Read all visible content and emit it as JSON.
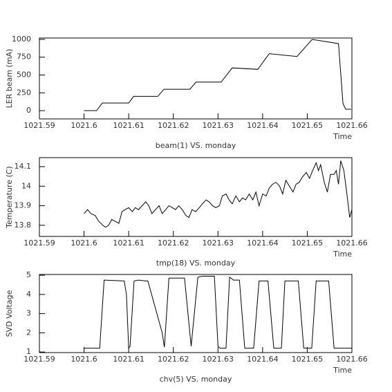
{
  "chart_data": [
    {
      "type": "line",
      "title": "beam(1) VS. monday",
      "xlabel": "Time",
      "ylabel": "LER beam (mA)",
      "color": "#000000",
      "x": [
        1021.6,
        1021.6028,
        1021.6041,
        1021.61,
        1021.6111,
        1021.6165,
        1021.6179,
        1021.6237,
        1021.6251,
        1021.6307,
        1021.6332,
        1021.6389,
        1021.6415,
        1021.6477,
        1021.6511,
        1021.657,
        1021.658,
        1021.6586,
        1021.6598
      ],
      "values": [
        0,
        0,
        107,
        107,
        200,
        200,
        300,
        300,
        400,
        400,
        600,
        580,
        800,
        760,
        1000,
        940,
        100,
        20,
        20
      ],
      "xlim": [
        1021.59,
        1021.66
      ],
      "xticks": [
        1021.59,
        1021.6,
        1021.61,
        1021.62,
        1021.63,
        1021.64,
        1021.65,
        1021.66
      ],
      "ylim": [
        -116,
        1019
      ],
      "yticks": [
        0,
        250,
        500,
        750,
        1000
      ]
    },
    {
      "type": "line",
      "title": "tmp(18) VS. monday",
      "xlabel": "Time",
      "ylabel": "Temperature (C)",
      "color": "#000000",
      "x": [
        1021.6,
        1021.6008,
        1021.6015,
        1021.6025,
        1021.6033,
        1021.6042,
        1021.6048,
        1021.6055,
        1021.6062,
        1021.607,
        1021.6078,
        1021.6085,
        1021.6092,
        1021.61,
        1021.6108,
        1021.6115,
        1021.6122,
        1021.613,
        1021.6138,
        1021.6145,
        1021.6152,
        1021.616,
        1021.6168,
        1021.6175,
        1021.6183,
        1021.619,
        1021.6198,
        1021.6205,
        1021.6212,
        1021.622,
        1021.6228,
        1021.6235,
        1021.6242,
        1021.625,
        1021.6258,
        1021.6265,
        1021.6273,
        1021.628,
        1021.6288,
        1021.6295,
        1021.6303,
        1021.631,
        1021.6318,
        1021.6325,
        1021.6332,
        1021.634,
        1021.6348,
        1021.6355,
        1021.6362,
        1021.637,
        1021.6378,
        1021.6385,
        1021.6392,
        1021.64,
        1021.6408,
        1021.6415,
        1021.6422,
        1021.643,
        1021.6438,
        1021.6445,
        1021.6452,
        1021.646,
        1021.6468,
        1021.6475,
        1021.6482,
        1021.649,
        1021.6498,
        1021.6505,
        1021.6512,
        1021.652,
        1021.6525,
        1021.653,
        1021.6538,
        1021.6545,
        1021.6552,
        1021.656,
        1021.6565,
        1021.657,
        1021.6575,
        1021.6582,
        1021.659,
        1021.6595,
        1021.66
      ],
      "values": [
        13.86,
        13.88,
        13.86,
        13.85,
        13.82,
        13.8,
        13.79,
        13.8,
        13.83,
        13.82,
        13.81,
        13.87,
        13.88,
        13.89,
        13.87,
        13.89,
        13.88,
        13.9,
        13.92,
        13.9,
        13.86,
        13.88,
        13.9,
        13.86,
        13.88,
        13.9,
        13.89,
        13.88,
        13.9,
        13.88,
        13.85,
        13.84,
        13.88,
        13.87,
        13.89,
        13.91,
        13.93,
        13.92,
        13.9,
        13.89,
        13.9,
        13.95,
        13.96,
        13.93,
        13.91,
        13.95,
        13.92,
        13.94,
        13.93,
        13.96,
        13.93,
        13.97,
        13.9,
        13.96,
        13.95,
        13.99,
        14.01,
        14.02,
        14.0,
        13.96,
        14.03,
        14.0,
        13.97,
        14.01,
        14.02,
        14.05,
        14.07,
        14.04,
        14.08,
        14.12,
        14.08,
        14.11,
        14.02,
        13.97,
        14.06,
        14.06,
        14.08,
        14.01,
        14.13,
        14.08,
        13.94,
        13.84,
        13.88
      ],
      "xlim": [
        1021.59,
        1021.66
      ],
      "xticks": [
        1021.59,
        1021.6,
        1021.61,
        1021.62,
        1021.63,
        1021.64,
        1021.65,
        1021.66
      ],
      "ylim": [
        13.743,
        14.146
      ],
      "yticks": [
        13.8,
        13.9,
        14,
        14.1
      ]
    },
    {
      "type": "line",
      "title": "chv(5) VS. monday",
      "xlabel": "Time",
      "ylabel": "SVD Voltage",
      "color": "#000000",
      "x": [
        1021.6,
        1021.6035,
        1021.6045,
        1021.609,
        1021.6095,
        1021.61,
        1021.6103,
        1021.6112,
        1021.6122,
        1021.6138,
        1021.6143,
        1021.6175,
        1021.618,
        1021.619,
        1021.621,
        1021.6225,
        1021.624,
        1021.6255,
        1021.6265,
        1021.628,
        1021.6292,
        1021.63,
        1021.6305,
        1021.6318,
        1021.6326,
        1021.6335,
        1021.6348,
        1021.636,
        1021.638,
        1021.6392,
        1021.6405,
        1021.6412,
        1021.6425,
        1021.6442,
        1021.645,
        1021.6465,
        1021.648,
        1021.6492,
        1021.651,
        1021.652,
        1021.6548,
        1021.656,
        1021.66
      ],
      "values": [
        1.2,
        1.2,
        4.75,
        4.7,
        4.0,
        1.2,
        1.3,
        4.7,
        4.75,
        4.7,
        4.7,
        2.0,
        1.25,
        4.85,
        4.85,
        4.85,
        1.3,
        4.9,
        4.95,
        4.95,
        4.95,
        1.3,
        1.2,
        1.2,
        4.9,
        4.75,
        4.75,
        1.2,
        1.2,
        4.7,
        4.7,
        4.7,
        1.2,
        1.2,
        4.7,
        4.7,
        4.7,
        1.2,
        1.2,
        4.7,
        4.7,
        1.2,
        1.2
      ],
      "xlim": [
        1021.59,
        1021.66
      ],
      "xticks": [
        1021.59,
        1021.6,
        1021.61,
        1021.62,
        1021.63,
        1021.64,
        1021.65,
        1021.66
      ],
      "ylim": [
        0.97,
        5.04
      ],
      "yticks": [
        1,
        2,
        3,
        4,
        5
      ]
    }
  ]
}
